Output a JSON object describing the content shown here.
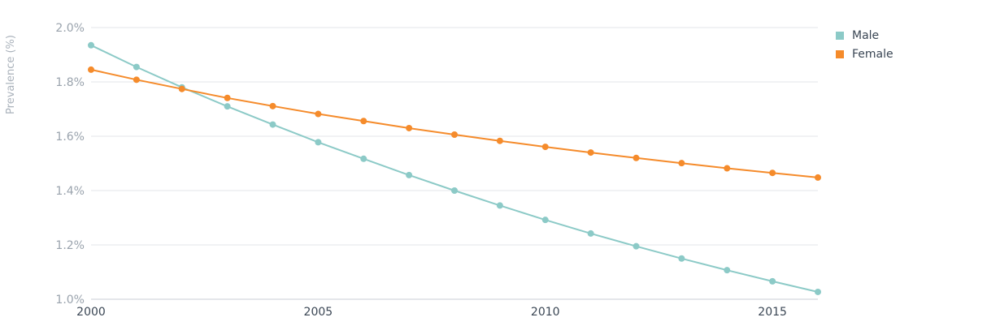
{
  "chart_data": {
    "type": "line",
    "xlabel": "",
    "ylabel": "Prevalence (%)",
    "xlim": [
      2000,
      2016
    ],
    "ylim": [
      1.0,
      2.0
    ],
    "x_ticks": [
      2000,
      2005,
      2010,
      2015
    ],
    "x_tick_labels": [
      "2000",
      "2005",
      "2010",
      "2015"
    ],
    "y_ticks": [
      1.0,
      1.2,
      1.4,
      1.6,
      1.8,
      2.0
    ],
    "y_tick_labels": [
      "1.0%",
      "1.2%",
      "1.4%",
      "1.6%",
      "1.8%",
      "2.0%"
    ],
    "grid": true,
    "legend_position": "top-right",
    "x": [
      2000,
      2001,
      2002,
      2003,
      2004,
      2005,
      2006,
      2007,
      2008,
      2009,
      2010,
      2011,
      2012,
      2013,
      2014,
      2015,
      2016
    ],
    "series": [
      {
        "name": "Male",
        "color": "#8ccac7",
        "values": [
          1.935,
          1.855,
          1.78,
          1.71,
          1.643,
          1.578,
          1.517,
          1.457,
          1.4,
          1.345,
          1.292,
          1.242,
          1.195,
          1.15,
          1.107,
          1.066,
          1.027
        ]
      },
      {
        "name": "Female",
        "color": "#f58b2b",
        "values": [
          1.845,
          1.808,
          1.774,
          1.741,
          1.711,
          1.682,
          1.656,
          1.63,
          1.606,
          1.583,
          1.561,
          1.54,
          1.52,
          1.501,
          1.482,
          1.465,
          1.448
        ]
      }
    ]
  }
}
